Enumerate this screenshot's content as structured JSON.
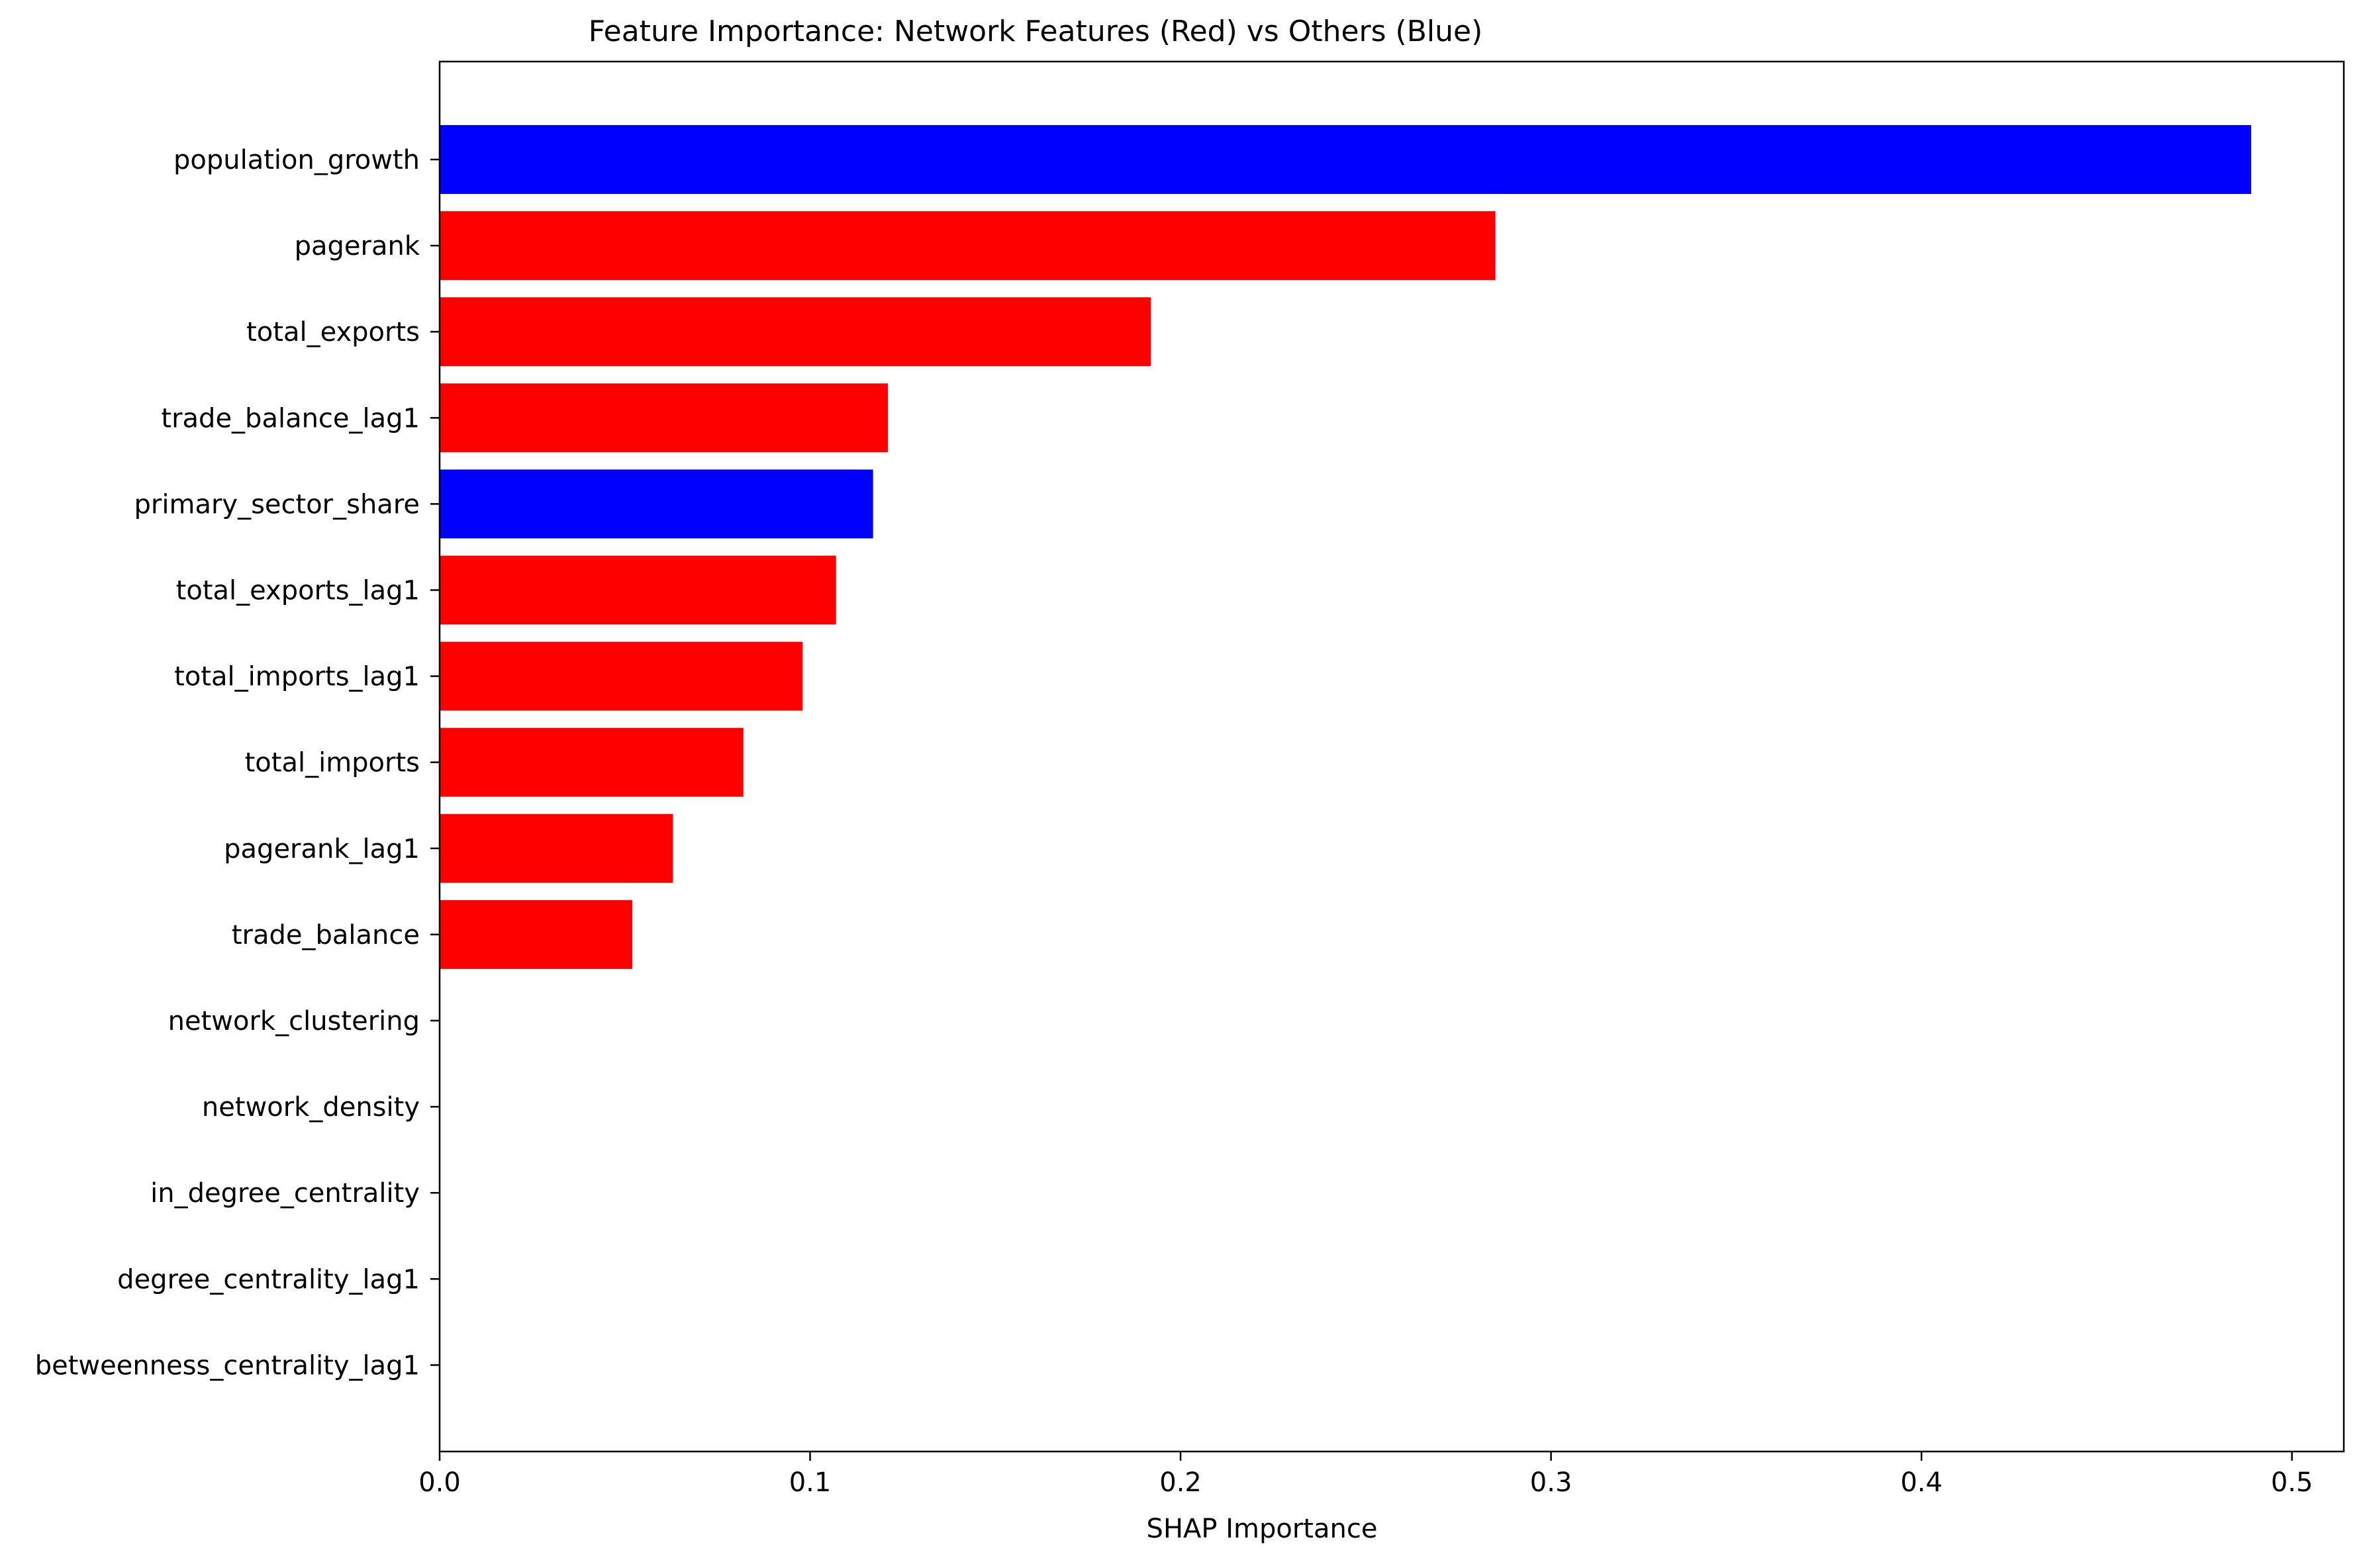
{
  "chart_data": {
    "type": "bar",
    "orientation": "horizontal",
    "title": "Feature Importance: Network Features (Red) vs Others (Blue)",
    "xlabel": "SHAP Importance",
    "ylabel": "",
    "xlim": [
      0,
      0.514
    ],
    "xticks": [
      0.0,
      0.1,
      0.2,
      0.3,
      0.4,
      0.5
    ],
    "xtick_labels": [
      "0.0",
      "0.1",
      "0.2",
      "0.3",
      "0.4",
      "0.5"
    ],
    "grid": false,
    "legend": "none",
    "colors": {
      "network": "#ff0000",
      "other": "#0000ff"
    },
    "categories": [
      "population_growth",
      "pagerank",
      "total_exports",
      "trade_balance_lag1",
      "primary_sector_share",
      "total_exports_lag1",
      "total_imports_lag1",
      "total_imports",
      "pagerank_lag1",
      "trade_balance",
      "network_clustering",
      "network_density",
      "in_degree_centrality",
      "degree_centrality_lag1",
      "betweenness_centrality_lag1"
    ],
    "values": [
      0.489,
      0.285,
      0.192,
      0.121,
      0.117,
      0.107,
      0.098,
      0.082,
      0.063,
      0.052,
      0,
      0,
      0,
      0,
      0
    ],
    "groups": [
      "other",
      "network",
      "network",
      "network",
      "other",
      "network",
      "network",
      "network",
      "network",
      "network",
      "network",
      "network",
      "network",
      "network",
      "network"
    ]
  }
}
